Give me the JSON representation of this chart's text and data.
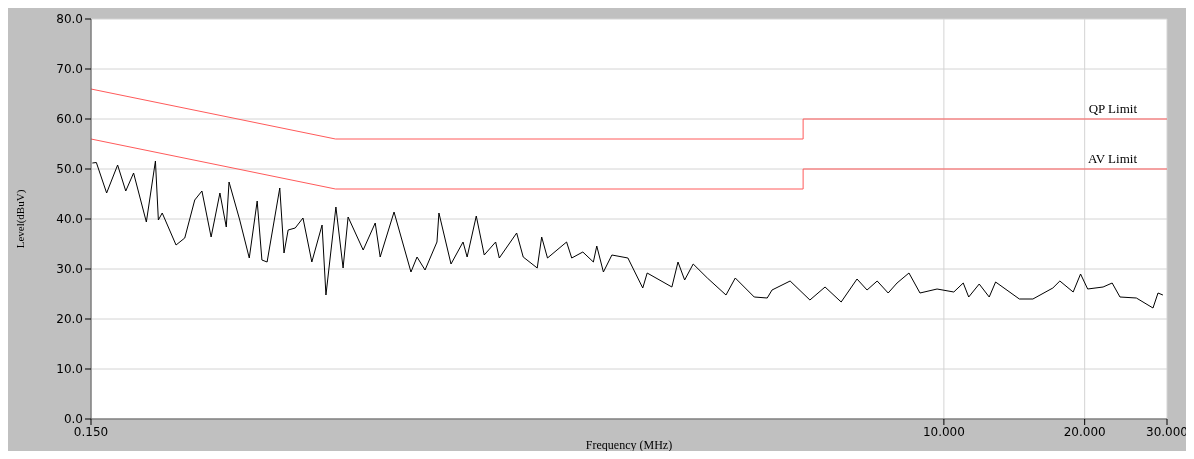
{
  "chart_data": {
    "type": "line",
    "xlabel": "Frequency (MHz)",
    "ylabel": "Level(dBuV)",
    "log": "x",
    "xlim": [
      0.15,
      30
    ],
    "xticks": [
      {
        "value": 0.15,
        "label": "0.150"
      },
      {
        "value": 10,
        "label": "10.000"
      },
      {
        "value": 20,
        "label": "20.000"
      },
      {
        "value": 30,
        "label": "30.000"
      }
    ],
    "ylim": [
      0,
      80
    ],
    "yticks": [
      {
        "value": 0,
        "label": "0.0"
      },
      {
        "value": 10,
        "label": "10.0"
      },
      {
        "value": 20,
        "label": "20.0"
      },
      {
        "value": 30,
        "label": "30.0"
      },
      {
        "value": 40,
        "label": "40.0"
      },
      {
        "value": 50,
        "label": "50.0"
      },
      {
        "value": 60,
        "label": "60.0"
      },
      {
        "value": 70,
        "label": "70.0"
      },
      {
        "value": 80,
        "label": "80.0"
      }
    ],
    "grid": true,
    "legend": false,
    "marker": "none",
    "series": [
      {
        "name": "QP Limit",
        "color": "#ff5a5a",
        "x": [
          0.15,
          0.5,
          5,
          5,
          30
        ],
        "values": [
          66,
          56,
          56,
          60,
          60
        ]
      },
      {
        "name": "AV Limit",
        "color": "#ff5a5a",
        "x": [
          0.15,
          0.5,
          5,
          5,
          30
        ],
        "values": [
          56,
          46,
          46,
          50,
          50
        ]
      },
      {
        "color": "#000000",
        "x": [
          0.151,
          0.154,
          0.162,
          0.171,
          0.178,
          0.185,
          0.197,
          0.206,
          0.209,
          0.213,
          0.228,
          0.238,
          0.25,
          0.259,
          0.271,
          0.283,
          0.292,
          0.296,
          0.312,
          0.327,
          0.34,
          0.348,
          0.357,
          0.38,
          0.388,
          0.396,
          0.41,
          0.426,
          0.445,
          0.468,
          0.477,
          0.501,
          0.519,
          0.532,
          0.573,
          0.608,
          0.623,
          0.667,
          0.725,
          0.747,
          0.777,
          0.824,
          0.832,
          0.883,
          0.937,
          0.956,
          1.0,
          1.04,
          1.1,
          1.12,
          1.22,
          1.26,
          1.35,
          1.38,
          1.42,
          1.56,
          1.6,
          1.69,
          1.78,
          1.81,
          1.87,
          1.95,
          2.11,
          2.27,
          2.32,
          2.62,
          2.7,
          2.79,
          2.91,
          3.12,
          3.42,
          3.58,
          3.93,
          4.19,
          4.29,
          4.69,
          5.17,
          5.57,
          6.03,
          6.52,
          6.85,
          7.2,
          7.6,
          7.94,
          8.42,
          8.89,
          9.67,
          10.5,
          11.0,
          11.3,
          11.9,
          12.5,
          12.9,
          14.5,
          15.5,
          17.1,
          17.7,
          18.9,
          19.6,
          20.3,
          21.9,
          22.9,
          23.8,
          25.8,
          28.0,
          28.7,
          29.4
        ],
        "values": [
          51.2,
          51.3,
          45.2,
          50.8,
          45.6,
          49.2,
          39.4,
          51.6,
          39.8,
          41.2,
          34.8,
          36.2,
          43.8,
          45.6,
          36.4,
          45.2,
          38.4,
          47.4,
          39.8,
          32.2,
          43.6,
          31.8,
          31.4,
          46.2,
          33.2,
          37.8,
          38.2,
          40.2,
          31.4,
          38.8,
          24.8,
          42.4,
          30.2,
          40.4,
          33.8,
          39.2,
          32.4,
          41.4,
          29.4,
          32.4,
          29.8,
          35.4,
          41.2,
          31.0,
          35.4,
          32.4,
          40.6,
          32.8,
          35.4,
          32.2,
          37.2,
          32.4,
          30.2,
          36.4,
          32.2,
          35.4,
          32.2,
          33.4,
          31.4,
          34.6,
          29.4,
          32.8,
          32.2,
          26.2,
          29.2,
          26.4,
          31.4,
          27.8,
          31.0,
          28.2,
          24.8,
          28.2,
          24.4,
          24.2,
          25.8,
          27.6,
          23.8,
          26.4,
          23.4,
          28.0,
          25.8,
          27.6,
          25.2,
          27.2,
          29.2,
          25.2,
          26.0,
          25.4,
          27.2,
          24.4,
          27.0,
          24.4,
          27.4,
          24.0,
          24.0,
          26.2,
          27.6,
          25.4,
          29.0,
          26.0,
          26.4,
          27.2,
          24.4,
          24.2,
          22.2,
          25.2,
          24.8
        ]
      }
    ]
  }
}
